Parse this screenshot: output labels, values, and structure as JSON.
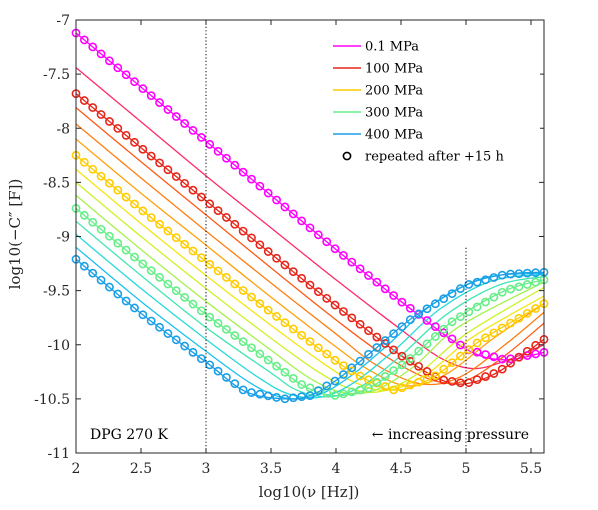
{
  "chart_data": {
    "type": "line",
    "title": "",
    "xlabel": "log10(ν [Hz])",
    "ylabel": "log10(−C″ [F])",
    "xlim": [
      2,
      5.6
    ],
    "ylim": [
      -11,
      -7
    ],
    "x_ticks": [
      2,
      2.5,
      3,
      3.5,
      4,
      4.5,
      5,
      5.5
    ],
    "x_tick_labels": [
      "2",
      "2.5",
      "3",
      "3.5",
      "4",
      "4.5",
      "5",
      "5.5"
    ],
    "y_ticks": [
      -7,
      -7.5,
      -8,
      -8.5,
      -9,
      -9.5,
      -10,
      -10.5,
      -11
    ],
    "y_tick_labels": [
      "-7",
      "-7.5",
      "-8",
      "-8.5",
      "-9",
      "-9.5",
      "-10",
      "-10.5",
      "-11"
    ],
    "grid": false,
    "legend_position": "top-right",
    "legend": [
      {
        "label": "0.1 MPa",
        "color": "#ff00ff",
        "marker": "line"
      },
      {
        "label": "100 MPa",
        "color": "#e6261a",
        "marker": "line"
      },
      {
        "label": "200 MPa",
        "color": "#ffcc00",
        "marker": "line"
      },
      {
        "label": "300 MPa",
        "color": "#66ee88",
        "marker": "line"
      },
      {
        "label": "400 MPa",
        "color": "#1a9fe6",
        "marker": "line"
      },
      {
        "label": "repeated after +15 h",
        "color": "#000000",
        "marker": "circle"
      }
    ],
    "vertical_lines": [
      {
        "x": 3,
        "y_from": -11,
        "y_to": -7,
        "style": "dotted"
      },
      {
        "x": 5,
        "y_from": -11,
        "y_to": -9.1,
        "style": "dotted"
      }
    ],
    "annotations": [
      {
        "text": "DPG 270 K",
        "position": "bottom-left"
      },
      {
        "text": "← increasing pressure",
        "position": "bottom-right"
      }
    ],
    "series": [
      {
        "name": "0.1 MPa",
        "color": "#ff00ff",
        "x": [
          2,
          2.5,
          3,
          3.5,
          4,
          4.5,
          5,
          5.3,
          5.6
        ],
        "y": [
          -7.12,
          -7.62,
          -8.12,
          -8.62,
          -9.12,
          -9.6,
          -10.04,
          -10.14,
          -10.07
        ],
        "markers": true
      },
      {
        "name": "",
        "color": "#ff2a66",
        "x": [
          2,
          2.5,
          3,
          3.5,
          4,
          4.5,
          4.8,
          5.05,
          5.3,
          5.6
        ],
        "y": [
          -7.44,
          -7.94,
          -8.44,
          -8.92,
          -9.4,
          -9.86,
          -10.12,
          -10.22,
          -10.15,
          -10.0
        ],
        "markers": false
      },
      {
        "name": "100 MPa",
        "color": "#e6261a",
        "x": [
          2,
          2.5,
          3,
          3.5,
          4,
          4.5,
          4.8,
          5.0,
          5.25,
          5.6
        ],
        "y": [
          -7.68,
          -8.18,
          -8.67,
          -9.16,
          -9.64,
          -10.1,
          -10.32,
          -10.36,
          -10.25,
          -9.95
        ],
        "markers": true
      },
      {
        "name": "",
        "color": "#ff5a14",
        "x": [
          2,
          2.5,
          3,
          3.5,
          4,
          4.4,
          4.75,
          5.0,
          5.3,
          5.6
        ],
        "y": [
          -7.81,
          -8.31,
          -8.8,
          -9.29,
          -9.77,
          -10.12,
          -10.33,
          -10.33,
          -10.1,
          -9.8
        ],
        "markers": false
      },
      {
        "name": "",
        "color": "#ff7d0f",
        "x": [
          2,
          2.5,
          3,
          3.5,
          4,
          4.3,
          4.65,
          4.95,
          5.3,
          5.6
        ],
        "y": [
          -7.96,
          -8.46,
          -8.95,
          -9.43,
          -9.9,
          -10.18,
          -10.36,
          -10.3,
          -10.0,
          -9.7
        ],
        "markers": false
      },
      {
        "name": "",
        "color": "#ffa00a",
        "x": [
          2,
          2.5,
          3,
          3.5,
          4,
          4.25,
          4.55,
          4.85,
          5.2,
          5.6
        ],
        "y": [
          -8.1,
          -8.6,
          -9.08,
          -9.56,
          -10.02,
          -10.23,
          -10.38,
          -10.27,
          -9.95,
          -9.62
        ],
        "markers": false
      },
      {
        "name": "200 MPa",
        "color": "#ffcc00",
        "x": [
          2,
          2.5,
          3,
          3.5,
          4,
          4.2,
          4.45,
          4.75,
          5.1,
          5.6
        ],
        "y": [
          -8.25,
          -8.75,
          -9.23,
          -9.7,
          -10.15,
          -10.3,
          -10.42,
          -10.3,
          -9.97,
          -9.62
        ],
        "markers": true
      },
      {
        "name": "",
        "color": "#f2e612",
        "x": [
          2,
          2.5,
          3,
          3.5,
          3.9,
          4.15,
          4.4,
          4.7,
          5.05,
          5.6
        ],
        "y": [
          -8.38,
          -8.88,
          -9.36,
          -9.82,
          -10.17,
          -10.35,
          -10.42,
          -10.27,
          -9.93,
          -9.55
        ],
        "markers": false
      },
      {
        "name": "",
        "color": "#ccf226",
        "x": [
          2,
          2.5,
          3,
          3.5,
          3.85,
          4.1,
          4.35,
          4.65,
          5.0,
          5.6
        ],
        "y": [
          -8.5,
          -9.0,
          -9.48,
          -9.94,
          -10.24,
          -10.4,
          -10.43,
          -10.25,
          -9.9,
          -9.47
        ],
        "markers": false
      },
      {
        "name": "",
        "color": "#a6f04d",
        "x": [
          2,
          2.5,
          3,
          3.5,
          3.8,
          4.05,
          4.3,
          4.6,
          4.95,
          5.6
        ],
        "y": [
          -8.62,
          -9.12,
          -9.6,
          -10.05,
          -10.31,
          -10.44,
          -10.42,
          -10.2,
          -9.83,
          -9.42
        ],
        "markers": false
      },
      {
        "name": "300 MPa",
        "color": "#66ee88",
        "x": [
          2,
          2.5,
          3,
          3.5,
          3.75,
          4.0,
          4.25,
          4.55,
          4.9,
          5.3,
          5.6
        ],
        "y": [
          -8.74,
          -9.24,
          -9.72,
          -10.16,
          -10.38,
          -10.47,
          -10.4,
          -10.15,
          -9.78,
          -9.5,
          -9.4
        ],
        "markers": true
      },
      {
        "name": "",
        "color": "#40e6b3",
        "x": [
          2,
          2.5,
          3,
          3.5,
          3.7,
          3.95,
          4.2,
          4.5,
          4.85,
          5.25,
          5.6
        ],
        "y": [
          -8.86,
          -9.36,
          -9.84,
          -10.26,
          -10.42,
          -10.48,
          -10.38,
          -10.1,
          -9.72,
          -9.45,
          -9.37
        ],
        "markers": false
      },
      {
        "name": "",
        "color": "#26d9d9",
        "x": [
          2,
          2.5,
          3,
          3.4,
          3.65,
          3.9,
          4.15,
          4.45,
          4.8,
          5.2,
          5.6
        ],
        "y": [
          -8.98,
          -9.48,
          -9.95,
          -10.3,
          -10.46,
          -10.48,
          -10.34,
          -10.05,
          -9.67,
          -9.41,
          -9.35
        ],
        "markers": false
      },
      {
        "name": "",
        "color": "#1ac0f0",
        "x": [
          2,
          2.5,
          3,
          3.35,
          3.6,
          3.85,
          4.1,
          4.4,
          4.75,
          5.15,
          5.6
        ],
        "y": [
          -9.1,
          -9.6,
          -10.06,
          -10.36,
          -10.49,
          -10.47,
          -10.3,
          -10.0,
          -9.62,
          -9.38,
          -9.34
        ],
        "markers": false
      },
      {
        "name": "400 MPa",
        "color": "#1a9fe6",
        "x": [
          2,
          2.5,
          3,
          3.3,
          3.6,
          3.8,
          4.0,
          4.3,
          4.6,
          5.0,
          5.3,
          5.6
        ],
        "y": [
          -9.21,
          -9.71,
          -10.16,
          -10.43,
          -10.5,
          -10.47,
          -10.33,
          -10.04,
          -9.74,
          -9.45,
          -9.35,
          -9.33
        ],
        "markers": true
      }
    ]
  }
}
